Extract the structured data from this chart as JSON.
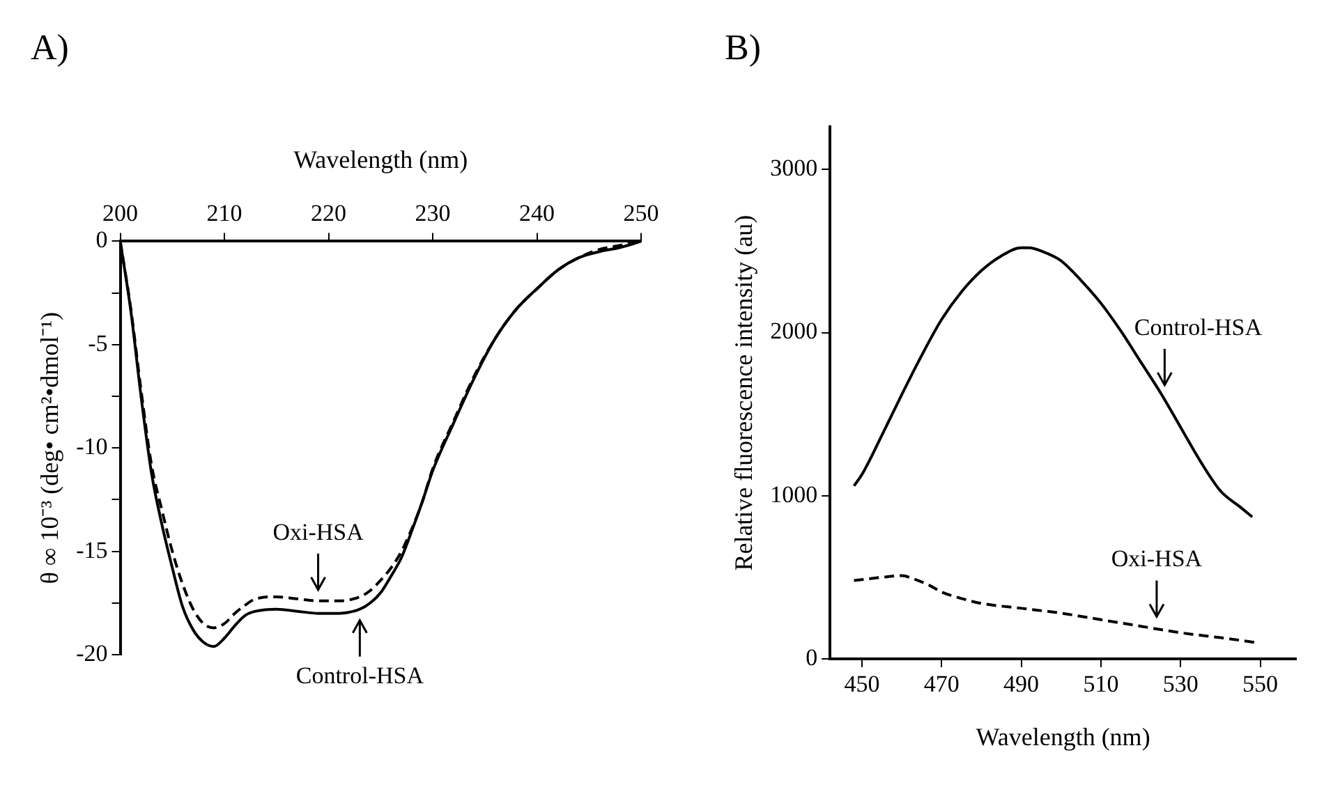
{
  "chart_data": [
    {
      "type": "line",
      "title": "A)",
      "xlabel": "Wavelength (nm)",
      "ylabel": "θ ∞ 10⁻³ (deg• cm²•dmol⁻¹)",
      "xlim": [
        200,
        250
      ],
      "xticks": [
        200,
        210,
        220,
        230,
        240,
        250
      ],
      "ylim": [
        -20,
        0
      ],
      "yticks": [
        -20,
        {
          "value": -17.5,
          "label": null
        },
        -15,
        {
          "value": -12.5,
          "label": null
        },
        -10,
        {
          "value": -7.5,
          "label": null
        },
        -5,
        {
          "value": -2.5,
          "label": null
        },
        0
      ],
      "grid": false,
      "legend": false,
      "marker": "none",
      "series": [
        {
          "color": "#000000",
          "line_style": "solid",
          "x": [
            200,
            201,
            202,
            203,
            204,
            205,
            206,
            207,
            208,
            209,
            210,
            211,
            212,
            213,
            215,
            217,
            219,
            221,
            223,
            224,
            225,
            226,
            227,
            228,
            229,
            230,
            232,
            234,
            236,
            238,
            240,
            242,
            244,
            246,
            248,
            250
          ],
          "values": [
            0,
            -3.3,
            -7.5,
            -11.2,
            -13.7,
            -15.8,
            -17.7,
            -18.8,
            -19.4,
            -19.6,
            -19.2,
            -18.6,
            -18.1,
            -17.9,
            -17.8,
            -17.9,
            -18,
            -18,
            -17.8,
            -17.5,
            -17,
            -16.2,
            -15.3,
            -14,
            -12.6,
            -11.1,
            -8.8,
            -6.6,
            -4.7,
            -3.3,
            -2.3,
            -1.4,
            -0.8,
            -0.5,
            -0.3,
            0
          ]
        },
        {
          "color": "#000000",
          "line_style": "dashed",
          "x": [
            200,
            201,
            202,
            203,
            204,
            205,
            206,
            207,
            208,
            209,
            210,
            211,
            212,
            213,
            215,
            217,
            219,
            221,
            223,
            224,
            225,
            226,
            227,
            228,
            229,
            230,
            232,
            234,
            236,
            238,
            240,
            242,
            244,
            246,
            248,
            250
          ],
          "values": [
            0,
            -3.2,
            -7.2,
            -10.8,
            -13,
            -15,
            -16.6,
            -17.8,
            -18.5,
            -18.7,
            -18.5,
            -18,
            -17.6,
            -17.3,
            -17.2,
            -17.3,
            -17.4,
            -17.4,
            -17.2,
            -16.9,
            -16.4,
            -15.8,
            -15,
            -13.9,
            -12.6,
            -11,
            -8.7,
            -6.5,
            -4.7,
            -3.3,
            -2.3,
            -1.4,
            -0.8,
            -0.4,
            -0.2,
            0
          ]
        }
      ],
      "annotations": [
        {
          "text": "Oxi-HSA",
          "x": 219,
          "y": -17.4
        },
        {
          "text": "Control-HSA",
          "x": 223,
          "y": -17.8
        }
      ]
    },
    {
      "type": "line",
      "title": "B)",
      "xlabel": "Wavelength (nm)",
      "ylabel": "Relative fluorescence intensity (au)",
      "xlim": [
        442,
        559
      ],
      "xticks": [
        450,
        470,
        490,
        510,
        530,
        550
      ],
      "ylim": [
        0,
        3260
      ],
      "yticks": [
        0,
        1000,
        2000,
        3000
      ],
      "grid": false,
      "legend": false,
      "marker": "none",
      "series": [
        {
          "color": "#000000",
          "line_style": "solid",
          "x": [
            448,
            450,
            455,
            460,
            465,
            470,
            475,
            480,
            485,
            490,
            492,
            495,
            500,
            505,
            510,
            515,
            520,
            525,
            530,
            535,
            540,
            545,
            548
          ],
          "values": [
            1060,
            1130,
            1370,
            1620,
            1860,
            2080,
            2250,
            2380,
            2470,
            2520,
            2520,
            2500,
            2440,
            2320,
            2180,
            2010,
            1820,
            1630,
            1420,
            1210,
            1030,
            930,
            870
          ]
        },
        {
          "color": "#000000",
          "line_style": "dashed",
          "x": [
            448,
            455,
            460,
            463,
            467,
            470,
            475,
            480,
            490,
            500,
            510,
            520,
            530,
            540,
            549
          ],
          "values": [
            480,
            500,
            510,
            490,
            450,
            410,
            370,
            340,
            310,
            280,
            240,
            200,
            160,
            130,
            100
          ]
        }
      ],
      "annotations": [
        {
          "text": "Control-HSA",
          "x": 526,
          "y": 1610
        },
        {
          "text": "Oxi-HSA",
          "x": 524,
          "y": 190
        }
      ]
    }
  ]
}
